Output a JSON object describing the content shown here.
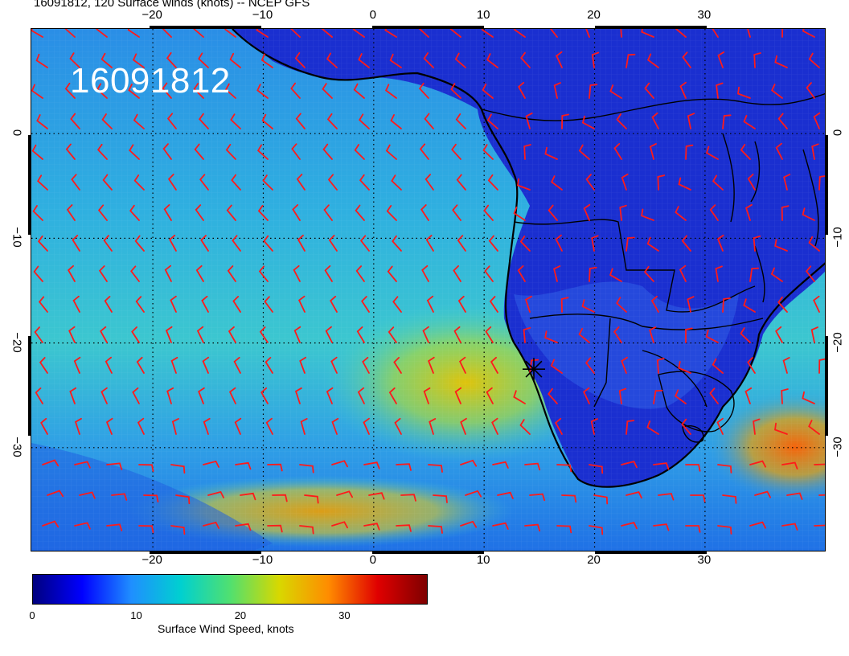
{
  "title": "16091812, 120 Surface winds (knots) -- NCEP GFS",
  "date_stamp": "16091812",
  "colors": {
    "ocean_base": "#2a9ee0",
    "land_base": "#1a2fd0",
    "wind_barb": "#ff1a1a",
    "coast": "#000000",
    "grid": "#000000"
  },
  "map": {
    "projection": "cylindrical",
    "lon_range": [
      -31,
      41
    ],
    "lat_range": [
      10,
      -40
    ],
    "lon_ticks": [
      {
        "value": -20,
        "label": "−20"
      },
      {
        "value": -10,
        "label": "−10"
      },
      {
        "value": 0,
        "label": "0"
      },
      {
        "value": 10,
        "label": "10"
      },
      {
        "value": 20,
        "label": "20"
      },
      {
        "value": 30,
        "label": "30"
      }
    ],
    "lat_ticks": [
      {
        "value": 0,
        "label": "0"
      },
      {
        "value": -10,
        "label": "−10"
      },
      {
        "value": -20,
        "label": "−20"
      },
      {
        "value": -30,
        "label": "−30"
      }
    ],
    "storm_marker": {
      "lon": 14.5,
      "lat": -22.5,
      "icon": "star-marker-icon"
    }
  },
  "colorbar": {
    "label": "Surface Wind Speed, knots",
    "range": [
      0,
      38
    ],
    "ticks": [
      {
        "value": 0,
        "label": "0"
      },
      {
        "value": 10,
        "label": "10"
      },
      {
        "value": 20,
        "label": "20"
      },
      {
        "value": 30,
        "label": "30"
      }
    ],
    "stops": [
      "#00007f",
      "#0000ff",
      "#1f8fff",
      "#00d0d0",
      "#50e070",
      "#d8d800",
      "#ff8c00",
      "#e00000",
      "#7f0000"
    ]
  }
}
